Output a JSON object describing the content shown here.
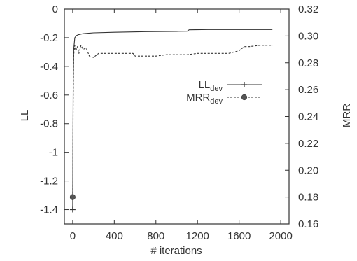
{
  "chart_data": {
    "type": "line",
    "xlabel": "# iterations",
    "ylabel_left": "LL",
    "ylabel_right": "MRR",
    "xlim": [
      -80,
      2080
    ],
    "ylim_left": [
      -1.5,
      0
    ],
    "ylim_right": [
      0.16,
      0.32
    ],
    "x_ticks": [
      0,
      400,
      800,
      1200,
      1600,
      2000
    ],
    "y_ticks_left": [
      0,
      -0.2,
      -0.4,
      -0.6,
      -0.8,
      -1,
      -1.2,
      -1.4
    ],
    "y_ticks_right": [
      0.32,
      0.3,
      0.28,
      0.26,
      0.24,
      0.22,
      0.2,
      0.18,
      0.16
    ],
    "grid": false,
    "legend_position": "top-right",
    "series": [
      {
        "name": "LL",
        "name_sub": "dev",
        "axis": "left",
        "style": "solid",
        "marker": "plus",
        "color": "#333333",
        "x": [
          0,
          5,
          10,
          20,
          35,
          60,
          100,
          200,
          400,
          700,
          1000,
          1100,
          1120,
          1300,
          1600,
          1920
        ],
        "y": [
          -1.4,
          -0.5,
          -0.28,
          -0.2,
          -0.185,
          -0.178,
          -0.172,
          -0.166,
          -0.162,
          -0.158,
          -0.156,
          -0.155,
          -0.145,
          -0.143,
          -0.143,
          -0.143
        ]
      },
      {
        "name": "MRR",
        "name_sub": "dev",
        "axis": "right",
        "style": "dashed",
        "marker": "dot",
        "color": "#333333",
        "x": [
          0,
          5,
          10,
          20,
          30,
          45,
          60,
          80,
          100,
          130,
          160,
          200,
          250,
          300,
          400,
          500,
          580,
          600,
          700,
          800,
          900,
          1000,
          1100,
          1200,
          1300,
          1400,
          1500,
          1600,
          1650,
          1700,
          1800,
          1920
        ],
        "y": [
          0.18,
          0.25,
          0.286,
          0.293,
          0.289,
          0.292,
          0.287,
          0.293,
          0.29,
          0.291,
          0.285,
          0.284,
          0.287,
          0.287,
          0.287,
          0.287,
          0.287,
          0.285,
          0.285,
          0.285,
          0.286,
          0.286,
          0.286,
          0.287,
          0.287,
          0.287,
          0.287,
          0.289,
          0.292,
          0.292,
          0.293,
          0.293
        ]
      }
    ]
  }
}
